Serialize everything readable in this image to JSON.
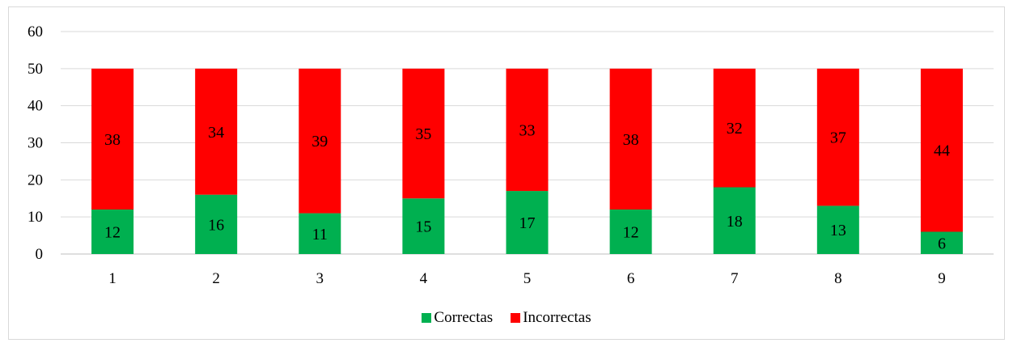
{
  "chart_data": {
    "type": "bar",
    "stacked": true,
    "categories": [
      "1",
      "2",
      "3",
      "4",
      "5",
      "6",
      "7",
      "8",
      "9"
    ],
    "series": [
      {
        "name": "Correctas",
        "color": "#00B050",
        "values": [
          12,
          16,
          11,
          15,
          17,
          12,
          18,
          13,
          6
        ]
      },
      {
        "name": "Incorrectas",
        "color": "#FF0000",
        "values": [
          38,
          34,
          39,
          35,
          33,
          38,
          32,
          37,
          44
        ]
      }
    ],
    "title": "",
    "xlabel": "",
    "ylabel": "",
    "ylim": [
      0,
      60
    ],
    "yticks": [
      0,
      10,
      20,
      30,
      40,
      50,
      60
    ],
    "grid": true,
    "legend_position": "bottom"
  }
}
